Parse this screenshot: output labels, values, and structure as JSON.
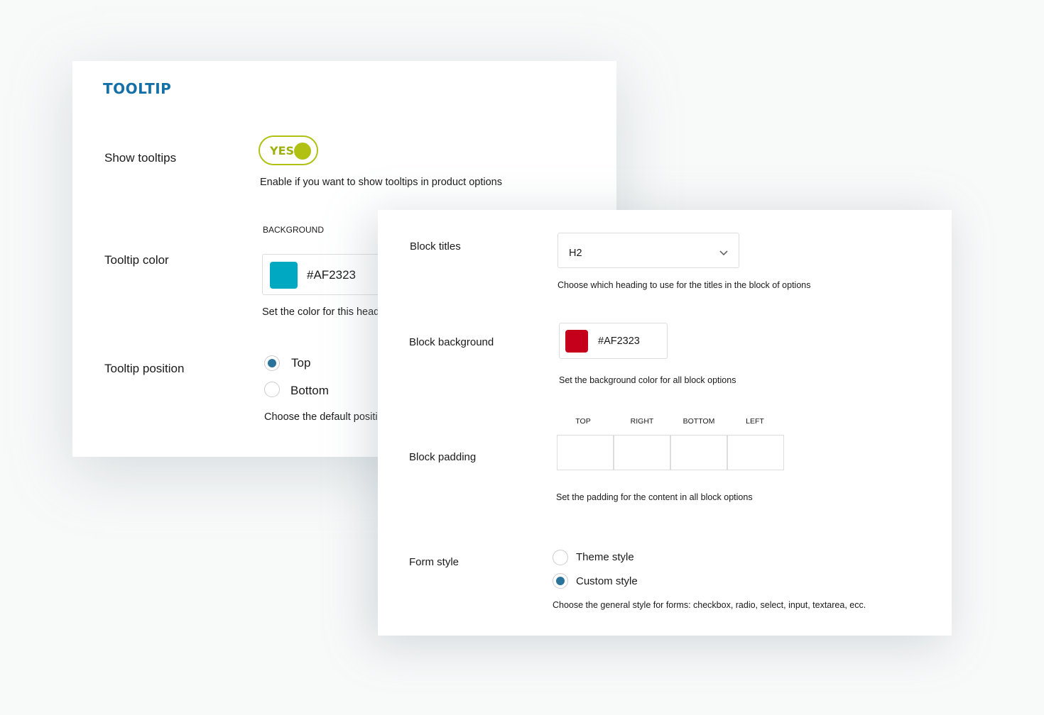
{
  "tooltip_panel": {
    "title": "TOOLTIP",
    "show_tooltips": {
      "label": "Show tooltips",
      "toggle_text": "YES",
      "enabled": true,
      "description": "Enable if you want to show tooltips in product options"
    },
    "tooltip_color": {
      "label": "Tooltip color",
      "sublabel": "BACKGROUND",
      "value": "#AF2323",
      "swatch": "#00a9c1",
      "description": "Set the color for this head"
    },
    "tooltip_position": {
      "label": "Tooltip position",
      "options": [
        {
          "label": "Top",
          "selected": true
        },
        {
          "label": "Bottom",
          "selected": false
        }
      ],
      "description": "Choose the default positi"
    }
  },
  "block_panel": {
    "block_titles": {
      "label": "Block titles",
      "value": "H2",
      "description": "Choose which heading to use for the titles in the block of options"
    },
    "block_background": {
      "label": "Block background",
      "value": "#AF2323",
      "swatch": "#c4001a",
      "description": "Set the background color for all block options"
    },
    "block_padding": {
      "label": "Block padding",
      "fields": [
        "TOP",
        "RIGHT",
        "BOTTOM",
        "LEFT"
      ],
      "description": "Set the padding for the content in all block options"
    },
    "form_style": {
      "label": "Form style",
      "options": [
        {
          "label": "Theme style",
          "selected": false
        },
        {
          "label": "Custom style",
          "selected": true
        }
      ],
      "description": "Choose the general style for forms: checkbox, radio, select, input, textarea, ecc."
    }
  },
  "colors": {
    "accent": "#1670a8",
    "toggle": "#b0c114",
    "radio": "#2a739b"
  }
}
